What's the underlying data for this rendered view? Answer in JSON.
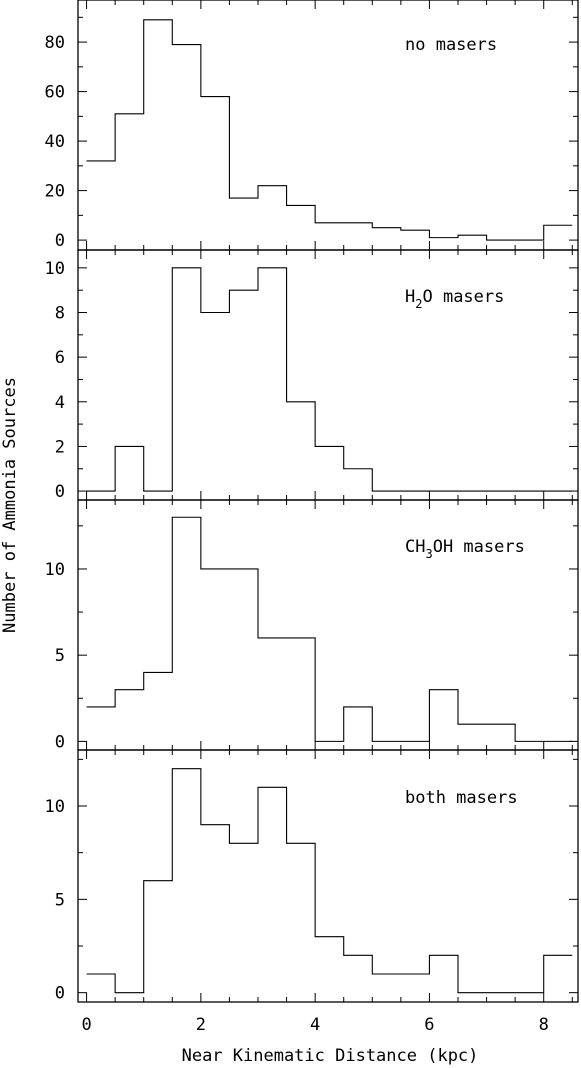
{
  "figure": {
    "ylabel": "Number of Ammonia Sources",
    "xlabel": "Near Kinematic Distance (kpc)"
  },
  "chart_data": [
    {
      "type": "histogram",
      "label": "no masers",
      "bin_edges": [
        0,
        0.5,
        1,
        1.5,
        2,
        2.5,
        3,
        3.5,
        4,
        4.5,
        5,
        5.5,
        6,
        6.5,
        7,
        7.5,
        8,
        8.5
      ],
      "values": [
        32,
        51,
        89,
        79,
        58,
        17,
        22,
        14,
        7,
        7,
        5,
        4,
        1,
        2,
        0,
        0,
        6
      ],
      "yticks": [
        0,
        20,
        40,
        60,
        80
      ],
      "ylim": [
        -4,
        97
      ]
    },
    {
      "type": "histogram",
      "label": "H2O masers",
      "label_parts": [
        "H",
        "2",
        "O masers"
      ],
      "bin_edges": [
        0,
        0.5,
        1,
        1.5,
        2,
        2.5,
        3,
        3.5,
        4,
        4.5,
        5,
        5.5,
        6,
        6.5,
        7,
        7.5,
        8,
        8.5
      ],
      "values": [
        0,
        2,
        0,
        10,
        8,
        9,
        10,
        4,
        2,
        1,
        0,
        0,
        0,
        0,
        0,
        0,
        0
      ],
      "yticks": [
        0,
        2,
        4,
        6,
        8,
        10
      ],
      "ylim": [
        -0.4,
        10.8
      ]
    },
    {
      "type": "histogram",
      "label": "CH3OH masers",
      "label_parts": [
        "CH",
        "3",
        "OH masers"
      ],
      "bin_edges": [
        0,
        0.5,
        1,
        1.5,
        2,
        2.5,
        3,
        3.5,
        4,
        4.5,
        5,
        5.5,
        6,
        6.5,
        7,
        7.5,
        8,
        8.5
      ],
      "values": [
        2,
        3,
        4,
        13,
        10,
        10,
        6,
        6,
        0,
        2,
        0,
        0,
        3,
        1,
        1,
        0,
        0
      ],
      "yticks": [
        0,
        5,
        10
      ],
      "ylim": [
        -0.5,
        14
      ]
    },
    {
      "type": "histogram",
      "label": "both masers",
      "bin_edges": [
        0,
        0.5,
        1,
        1.5,
        2,
        2.5,
        3,
        3.5,
        4,
        4.5,
        5,
        5.5,
        6,
        6.5,
        7,
        7.5,
        8,
        8.5
      ],
      "values": [
        1,
        0,
        6,
        12,
        9,
        8,
        11,
        8,
        3,
        2,
        1,
        1,
        2,
        0,
        0,
        0,
        2
      ],
      "yticks": [
        0,
        5,
        10
      ],
      "ylim": [
        -0.5,
        13
      ]
    }
  ],
  "xaxis": {
    "ticks": [
      0,
      2,
      4,
      6,
      8
    ],
    "tick_labels": [
      "0",
      "2",
      "4",
      "6",
      "8"
    ],
    "xlim": [
      -0.15,
      8.6
    ]
  }
}
